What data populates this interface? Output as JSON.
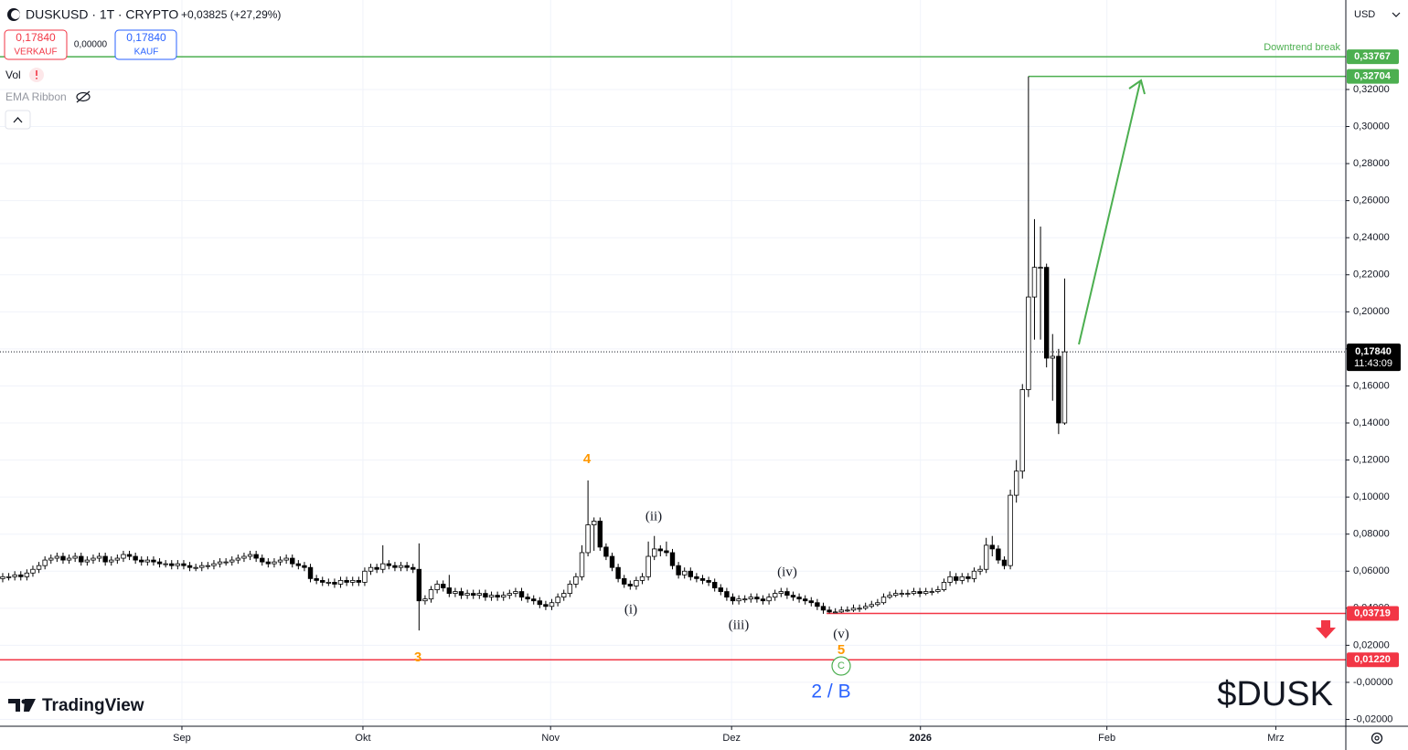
{
  "header": {
    "symbol": "DUSKUSD · 1T · CRYPTO",
    "change": "+0,03825 (+27,29%)",
    "sell_price": "0,17840",
    "sell_label": "VERKAUF",
    "spread": "0,00000",
    "buy_price": "0,17840",
    "buy_label": "KAUF",
    "indicator_1": "Vol",
    "indicator_2": "EMA Ribbon",
    "currency": "USD",
    "logo": "TradingView"
  },
  "chart_data": {
    "type": "candlestick",
    "watermark": "$DUSK",
    "up_color": "#ffffff",
    "down_color": "#000000",
    "border_color": "#000000",
    "grid": true,
    "xlim": [
      -0.45,
      222.6
    ],
    "xticks": [
      {
        "value": 29.7,
        "label": "Sep"
      },
      {
        "value": 59.7,
        "label": "Okt"
      },
      {
        "value": 90.8,
        "label": "Nov"
      },
      {
        "value": 120.8,
        "label": "Dez"
      },
      {
        "value": 152.1,
        "label": "2026"
      },
      {
        "value": 183,
        "label": "Feb"
      },
      {
        "value": 211,
        "label": "Mrz"
      }
    ],
    "ylim": [
      -0.0237,
      0.3683
    ],
    "yticks": [
      {
        "value": 0.32,
        "label": "0,32000"
      },
      {
        "value": 0.3,
        "label": "0,30000"
      },
      {
        "value": 0.28,
        "label": "0,28000"
      },
      {
        "value": 0.26,
        "label": "0,26000"
      },
      {
        "value": 0.24,
        "label": "0,24000"
      },
      {
        "value": 0.22,
        "label": "0,22000"
      },
      {
        "value": 0.2,
        "label": "0,20000"
      },
      {
        "value": 0.18,
        "label": "0,18000"
      },
      {
        "value": 0.16,
        "label": "0,16000"
      },
      {
        "value": 0.14,
        "label": "0,14000"
      },
      {
        "value": 0.12,
        "label": "0,12000"
      },
      {
        "value": 0.1,
        "label": "0,10000"
      },
      {
        "value": 0.08,
        "label": "0,08000"
      },
      {
        "value": 0.06,
        "label": "0,06000"
      },
      {
        "value": 0.04,
        "label": "0,04000"
      },
      {
        "value": 0.02,
        "label": "0,02000"
      },
      {
        "value": 0,
        "label": "-0,00000"
      },
      {
        "value": -0.02,
        "label": "-0,02000"
      }
    ],
    "candles": [
      [
        0.056,
        0.059,
        0.054,
        0.057
      ],
      [
        0.057,
        0.059,
        0.055,
        0.057
      ],
      [
        0.057,
        0.06,
        0.055,
        0.058
      ],
      [
        0.058,
        0.06,
        0.055,
        0.057
      ],
      [
        0.057,
        0.061,
        0.055,
        0.059
      ],
      [
        0.059,
        0.063,
        0.057,
        0.061
      ],
      [
        0.061,
        0.065,
        0.059,
        0.063
      ],
      [
        0.063,
        0.068,
        0.061,
        0.066
      ],
      [
        0.066,
        0.069,
        0.064,
        0.067
      ],
      [
        0.067,
        0.07,
        0.065,
        0.068
      ],
      [
        0.068,
        0.07,
        0.064,
        0.066
      ],
      [
        0.066,
        0.069,
        0.064,
        0.067
      ],
      [
        0.067,
        0.07,
        0.065,
        0.068
      ],
      [
        0.068,
        0.07,
        0.063,
        0.065
      ],
      [
        0.065,
        0.068,
        0.063,
        0.066
      ],
      [
        0.066,
        0.069,
        0.064,
        0.067
      ],
      [
        0.067,
        0.07,
        0.065,
        0.068
      ],
      [
        0.068,
        0.07,
        0.063,
        0.065
      ],
      [
        0.065,
        0.068,
        0.063,
        0.066
      ],
      [
        0.066,
        0.069,
        0.064,
        0.067
      ],
      [
        0.067,
        0.071,
        0.065,
        0.069
      ],
      [
        0.069,
        0.071,
        0.066,
        0.068
      ],
      [
        0.068,
        0.07,
        0.064,
        0.066
      ],
      [
        0.066,
        0.068,
        0.063,
        0.065
      ],
      [
        0.065,
        0.068,
        0.063,
        0.066
      ],
      [
        0.066,
        0.068,
        0.063,
        0.065
      ],
      [
        0.065,
        0.067,
        0.062,
        0.064
      ],
      [
        0.064,
        0.066,
        0.062,
        0.064
      ],
      [
        0.064,
        0.066,
        0.061,
        0.063
      ],
      [
        0.063,
        0.066,
        0.061,
        0.064
      ],
      [
        0.064,
        0.066,
        0.061,
        0.063
      ],
      [
        0.063,
        0.065,
        0.06,
        0.062
      ],
      [
        0.062,
        0.064,
        0.06,
        0.062
      ],
      [
        0.062,
        0.065,
        0.06,
        0.063
      ],
      [
        0.063,
        0.065,
        0.061,
        0.063
      ],
      [
        0.063,
        0.066,
        0.061,
        0.064
      ],
      [
        0.064,
        0.067,
        0.062,
        0.065
      ],
      [
        0.065,
        0.067,
        0.063,
        0.065
      ],
      [
        0.065,
        0.068,
        0.063,
        0.066
      ],
      [
        0.066,
        0.069,
        0.064,
        0.067
      ],
      [
        0.067,
        0.07,
        0.065,
        0.068
      ],
      [
        0.068,
        0.071,
        0.066,
        0.069
      ],
      [
        0.069,
        0.071,
        0.065,
        0.067
      ],
      [
        0.067,
        0.069,
        0.063,
        0.065
      ],
      [
        0.065,
        0.067,
        0.062,
        0.064
      ],
      [
        0.064,
        0.067,
        0.062,
        0.065
      ],
      [
        0.065,
        0.068,
        0.063,
        0.066
      ],
      [
        0.066,
        0.069,
        0.064,
        0.067
      ],
      [
        0.067,
        0.069,
        0.062,
        0.064
      ],
      [
        0.064,
        0.066,
        0.061,
        0.063
      ],
      [
        0.063,
        0.065,
        0.06,
        0.062
      ],
      [
        0.062,
        0.064,
        0.054,
        0.056
      ],
      [
        0.056,
        0.058,
        0.053,
        0.055
      ],
      [
        0.055,
        0.057,
        0.052,
        0.054
      ],
      [
        0.054,
        0.056,
        0.052,
        0.054
      ],
      [
        0.054,
        0.056,
        0.051,
        0.053
      ],
      [
        0.053,
        0.057,
        0.051,
        0.055
      ],
      [
        0.055,
        0.057,
        0.052,
        0.054
      ],
      [
        0.054,
        0.057,
        0.052,
        0.055
      ],
      [
        0.055,
        0.057,
        0.052,
        0.054
      ],
      [
        0.054,
        0.062,
        0.052,
        0.06
      ],
      [
        0.06,
        0.064,
        0.058,
        0.062
      ],
      [
        0.062,
        0.064,
        0.059,
        0.061
      ],
      [
        0.061,
        0.074,
        0.059,
        0.064
      ],
      [
        0.064,
        0.066,
        0.061,
        0.063
      ],
      [
        0.063,
        0.065,
        0.06,
        0.062
      ],
      [
        0.062,
        0.065,
        0.06,
        0.063
      ],
      [
        0.063,
        0.065,
        0.06,
        0.062
      ],
      [
        0.062,
        0.064,
        0.059,
        0.061
      ],
      [
        0.061,
        0.075,
        0.028,
        0.044
      ],
      [
        0.044,
        0.047,
        0.042,
        0.045
      ],
      [
        0.045,
        0.052,
        0.043,
        0.05
      ],
      [
        0.05,
        0.055,
        0.048,
        0.053
      ],
      [
        0.053,
        0.055,
        0.049,
        0.051
      ],
      [
        0.051,
        0.058,
        0.046,
        0.048
      ],
      [
        0.048,
        0.051,
        0.046,
        0.049
      ],
      [
        0.049,
        0.051,
        0.045,
        0.047
      ],
      [
        0.047,
        0.05,
        0.045,
        0.048
      ],
      [
        0.048,
        0.05,
        0.045,
        0.047
      ],
      [
        0.047,
        0.05,
        0.045,
        0.048
      ],
      [
        0.048,
        0.05,
        0.044,
        0.046
      ],
      [
        0.046,
        0.049,
        0.044,
        0.047
      ],
      [
        0.047,
        0.049,
        0.044,
        0.046
      ],
      [
        0.046,
        0.049,
        0.044,
        0.047
      ],
      [
        0.047,
        0.05,
        0.045,
        0.048
      ],
      [
        0.048,
        0.051,
        0.046,
        0.049
      ],
      [
        0.049,
        0.051,
        0.044,
        0.046
      ],
      [
        0.046,
        0.048,
        0.043,
        0.045
      ],
      [
        0.045,
        0.047,
        0.042,
        0.044
      ],
      [
        0.044,
        0.046,
        0.04,
        0.042
      ],
      [
        0.042,
        0.044,
        0.039,
        0.041
      ],
      [
        0.041,
        0.045,
        0.039,
        0.043
      ],
      [
        0.043,
        0.048,
        0.041,
        0.046
      ],
      [
        0.046,
        0.05,
        0.044,
        0.048
      ],
      [
        0.048,
        0.055,
        0.046,
        0.053
      ],
      [
        0.053,
        0.059,
        0.051,
        0.057
      ],
      [
        0.057,
        0.074,
        0.055,
        0.07
      ],
      [
        0.07,
        0.109,
        0.068,
        0.085
      ],
      [
        0.085,
        0.089,
        0.071,
        0.087
      ],
      [
        0.087,
        0.089,
        0.071,
        0.073
      ],
      [
        0.073,
        0.075,
        0.066,
        0.068
      ],
      [
        0.068,
        0.07,
        0.06,
        0.062
      ],
      [
        0.062,
        0.064,
        0.054,
        0.056
      ],
      [
        0.056,
        0.058,
        0.051,
        0.053
      ],
      [
        0.053,
        0.055,
        0.05,
        0.052
      ],
      [
        0.052,
        0.057,
        0.05,
        0.055
      ],
      [
        0.055,
        0.059,
        0.053,
        0.057
      ],
      [
        0.057,
        0.076,
        0.055,
        0.068
      ],
      [
        0.068,
        0.079,
        0.066,
        0.072
      ],
      [
        0.072,
        0.074,
        0.068,
        0.071
      ],
      [
        0.071,
        0.076,
        0.068,
        0.07
      ],
      [
        0.07,
        0.072,
        0.061,
        0.063
      ],
      [
        0.063,
        0.065,
        0.056,
        0.058
      ],
      [
        0.058,
        0.062,
        0.056,
        0.06
      ],
      [
        0.06,
        0.062,
        0.055,
        0.057
      ],
      [
        0.057,
        0.059,
        0.054,
        0.056
      ],
      [
        0.056,
        0.058,
        0.053,
        0.055
      ],
      [
        0.055,
        0.057,
        0.052,
        0.054
      ],
      [
        0.054,
        0.056,
        0.049,
        0.051
      ],
      [
        0.051,
        0.053,
        0.047,
        0.049
      ],
      [
        0.049,
        0.051,
        0.044,
        0.046
      ],
      [
        0.046,
        0.048,
        0.042,
        0.044
      ],
      [
        0.044,
        0.047,
        0.042,
        0.045
      ],
      [
        0.045,
        0.047,
        0.043,
        0.045
      ],
      [
        0.045,
        0.048,
        0.043,
        0.046
      ],
      [
        0.046,
        0.048,
        0.043,
        0.045
      ],
      [
        0.045,
        0.047,
        0.042,
        0.044
      ],
      [
        0.044,
        0.048,
        0.042,
        0.046
      ],
      [
        0.046,
        0.05,
        0.044,
        0.048
      ],
      [
        0.048,
        0.051,
        0.046,
        0.049
      ],
      [
        0.049,
        0.051,
        0.045,
        0.047
      ],
      [
        0.047,
        0.049,
        0.044,
        0.046
      ],
      [
        0.046,
        0.048,
        0.043,
        0.045
      ],
      [
        0.045,
        0.047,
        0.042,
        0.044
      ],
      [
        0.044,
        0.046,
        0.041,
        0.043
      ],
      [
        0.043,
        0.045,
        0.039,
        0.041
      ],
      [
        0.041,
        0.043,
        0.037,
        0.039
      ],
      [
        0.039,
        0.041,
        0.0372,
        0.038
      ],
      [
        0.038,
        0.04,
        0.0375,
        0.038
      ],
      [
        0.038,
        0.041,
        0.0375,
        0.039
      ],
      [
        0.039,
        0.041,
        0.038,
        0.039
      ],
      [
        0.039,
        0.042,
        0.038,
        0.04
      ],
      [
        0.04,
        0.042,
        0.038,
        0.04
      ],
      [
        0.04,
        0.043,
        0.039,
        0.041
      ],
      [
        0.041,
        0.044,
        0.04,
        0.042
      ],
      [
        0.042,
        0.045,
        0.041,
        0.043
      ],
      [
        0.043,
        0.048,
        0.042,
        0.046
      ],
      [
        0.046,
        0.049,
        0.045,
        0.047
      ],
      [
        0.047,
        0.05,
        0.046,
        0.048
      ],
      [
        0.048,
        0.05,
        0.046,
        0.048
      ],
      [
        0.048,
        0.05,
        0.046,
        0.048
      ],
      [
        0.048,
        0.051,
        0.047,
        0.049
      ],
      [
        0.049,
        0.051,
        0.046,
        0.048
      ],
      [
        0.048,
        0.051,
        0.047,
        0.049
      ],
      [
        0.049,
        0.051,
        0.047,
        0.049
      ],
      [
        0.049,
        0.052,
        0.048,
        0.05
      ],
      [
        0.05,
        0.056,
        0.049,
        0.054
      ],
      [
        0.054,
        0.06,
        0.052,
        0.057
      ],
      [
        0.057,
        0.059,
        0.053,
        0.055
      ],
      [
        0.055,
        0.059,
        0.053,
        0.057
      ],
      [
        0.057,
        0.059,
        0.054,
        0.056
      ],
      [
        0.056,
        0.062,
        0.054,
        0.06
      ],
      [
        0.06,
        0.063,
        0.058,
        0.061
      ],
      [
        0.061,
        0.078,
        0.059,
        0.074
      ],
      [
        0.074,
        0.079,
        0.068,
        0.072
      ],
      [
        0.072,
        0.074,
        0.064,
        0.066
      ],
      [
        0.066,
        0.068,
        0.061,
        0.063
      ],
      [
        0.063,
        0.104,
        0.061,
        0.101
      ],
      [
        0.101,
        0.12,
        0.097,
        0.114
      ],
      [
        0.114,
        0.161,
        0.11,
        0.158
      ],
      [
        0.158,
        0.32704,
        0.154,
        0.208
      ],
      [
        0.208,
        0.25,
        0.185,
        0.224
      ],
      [
        0.224,
        0.246,
        0.185,
        0.224
      ],
      [
        0.224,
        0.226,
        0.17,
        0.175
      ],
      [
        0.175,
        0.188,
        0.152,
        0.176
      ],
      [
        0.176,
        0.18,
        0.134,
        0.14
      ],
      [
        0.14,
        0.218,
        0.139,
        0.1784
      ]
    ],
    "price_lines": [
      {
        "value": 0.33767,
        "label": "0,33767",
        "color": "#4caf50",
        "text": "Downtrend break"
      },
      {
        "value": 0.32704,
        "label": "0,32704",
        "color": "#4caf50"
      },
      {
        "value": 0.03719,
        "label": "0,03719",
        "color": "#f23645"
      },
      {
        "value": 0.0122,
        "label": "0,01220",
        "color": "#f23645"
      }
    ],
    "last_price": {
      "value": 0.1784,
      "label": "0,17840",
      "countdown": "11:43:09"
    },
    "annotations": [
      {
        "text": "4",
        "color": "#ff9800"
      },
      {
        "text": "3",
        "color": "#ff9800"
      },
      {
        "text": "(i)",
        "color": "#131722"
      },
      {
        "text": "(ii)",
        "color": "#131722"
      },
      {
        "text": "(iii)",
        "color": "#131722"
      },
      {
        "text": "(iv)",
        "color": "#131722"
      },
      {
        "text": "(v)",
        "color": "#131722"
      },
      {
        "text": "5",
        "color": "#ff9800"
      },
      {
        "text": "C",
        "color": "#4caf50"
      },
      {
        "text": "2 / B",
        "color": "#2962ff"
      }
    ]
  }
}
